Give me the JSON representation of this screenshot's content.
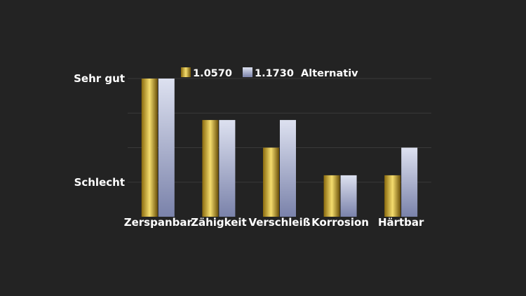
{
  "chart_data": {
    "type": "bar",
    "title": "",
    "xlabel": "",
    "ylabel": "",
    "categories": [
      "Zerspanbar",
      "Zähigkeit",
      "Verschleiß",
      "Korrosion",
      "Härtbar"
    ],
    "series": [
      {
        "name": "1.0570",
        "values": [
          4,
          2.8,
          2,
          1.2,
          1.2
        ]
      },
      {
        "name": "1.1730  Alternativ",
        "values": [
          4,
          2.8,
          2.8,
          1.2,
          2
        ]
      }
    ],
    "y_tick_labels": [
      {
        "value": 4,
        "label": "Sehr gut"
      },
      {
        "value": 1,
        "label": "Schlecht"
      }
    ],
    "ylim": [
      0,
      4
    ],
    "grid": true,
    "legend_position": "top",
    "colors": {
      "background": "#232323",
      "grid": "#3a3a3a",
      "text": "#ffffff",
      "series_1": [
        "#8a6a0e",
        "#f5dd6e",
        "#6b5008"
      ],
      "series_2": [
        "#9aa2c4",
        "#dde1f0",
        "#7a82aa"
      ]
    }
  }
}
